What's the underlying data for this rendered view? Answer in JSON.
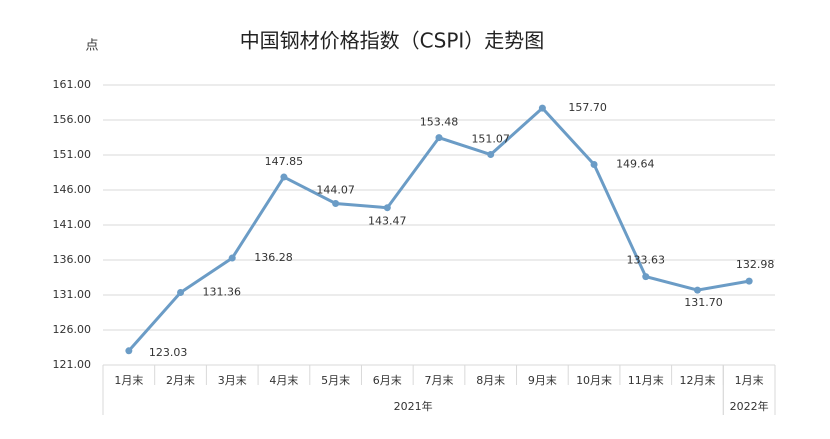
{
  "chart_data": {
    "type": "line",
    "title": "中国钢材价格指数（CSPI）走势图",
    "y_label": "点",
    "categories": [
      "1月末",
      "2月末",
      "3月末",
      "4月末",
      "5月末",
      "6月末",
      "7月末",
      "8月末",
      "9月末",
      "10月末",
      "11月末",
      "12月末",
      "1月末"
    ],
    "category_groups": [
      "2021年",
      "2021年",
      "2021年",
      "2021年",
      "2021年",
      "2021年",
      "2021年",
      "2021年",
      "2021年",
      "2021年",
      "2021年",
      "2021年",
      "2022年"
    ],
    "series": [
      {
        "name": "CSPI",
        "color": "#6b9cc6",
        "values": [
          123.03,
          131.36,
          136.28,
          147.85,
          144.07,
          143.47,
          153.48,
          151.07,
          157.7,
          149.64,
          133.63,
          131.7,
          132.98
        ],
        "value_labels": [
          "123.03",
          "131.36",
          "136.28",
          "147.85",
          "144.07",
          "143.47",
          "153.48",
          "151.07",
          "157.70",
          "149.64",
          "133.63",
          "131.70",
          "132.98"
        ]
      }
    ],
    "ylim": [
      121,
      161
    ],
    "yticks": [
      {
        "value": 121,
        "label": "121.00"
      },
      {
        "value": 126,
        "label": "126.00"
      },
      {
        "value": 131,
        "label": "131.00"
      },
      {
        "value": 136,
        "label": "136.00"
      },
      {
        "value": 141,
        "label": "141.00"
      },
      {
        "value": 146,
        "label": "146.00"
      },
      {
        "value": 151,
        "label": "151.00"
      },
      {
        "value": 156,
        "label": "156.00"
      },
      {
        "value": 161,
        "label": "161.00"
      }
    ],
    "grid": true
  }
}
